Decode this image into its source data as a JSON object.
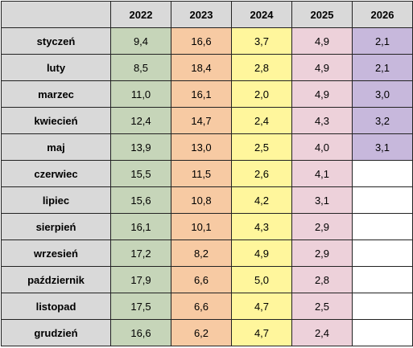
{
  "table": {
    "header": [
      "2022",
      "2023",
      "2024",
      "2025",
      "2026"
    ],
    "rows": [
      [
        "styczeń",
        "9,4",
        "16,6",
        "3,7",
        "4,9",
        "2,1"
      ],
      [
        "luty",
        "8,5",
        "18,4",
        "2,8",
        "4,9",
        "2,1"
      ],
      [
        "marzec",
        "11,0",
        "16,1",
        "2,0",
        "4,9",
        "3,0"
      ],
      [
        "kwiecień",
        "12,4",
        "14,7",
        "2,4",
        "4,3",
        "3,2"
      ],
      [
        "maj",
        "13,9",
        "13,0",
        "2,5",
        "4,0",
        "3,1"
      ],
      [
        "czerwiec",
        "15,5",
        "11,5",
        "2,6",
        "4,1"
      ],
      [
        "lipiec",
        "15,6",
        "10,8",
        "4,2",
        "3,1"
      ],
      [
        "sierpień",
        "16,1",
        "10,1",
        "4,3",
        "2,9"
      ],
      [
        "wrzesień",
        "17,2",
        "8,2",
        "4,9",
        "2,9"
      ],
      [
        "październik",
        "17,9",
        "6,6",
        "5,0",
        "2,8"
      ],
      [
        "listopad",
        "17,5",
        "6,6",
        "4,7",
        "2,5"
      ],
      [
        "grudzień",
        "16,6",
        "6,2",
        "4,7",
        "2,4"
      ]
    ]
  }
}
